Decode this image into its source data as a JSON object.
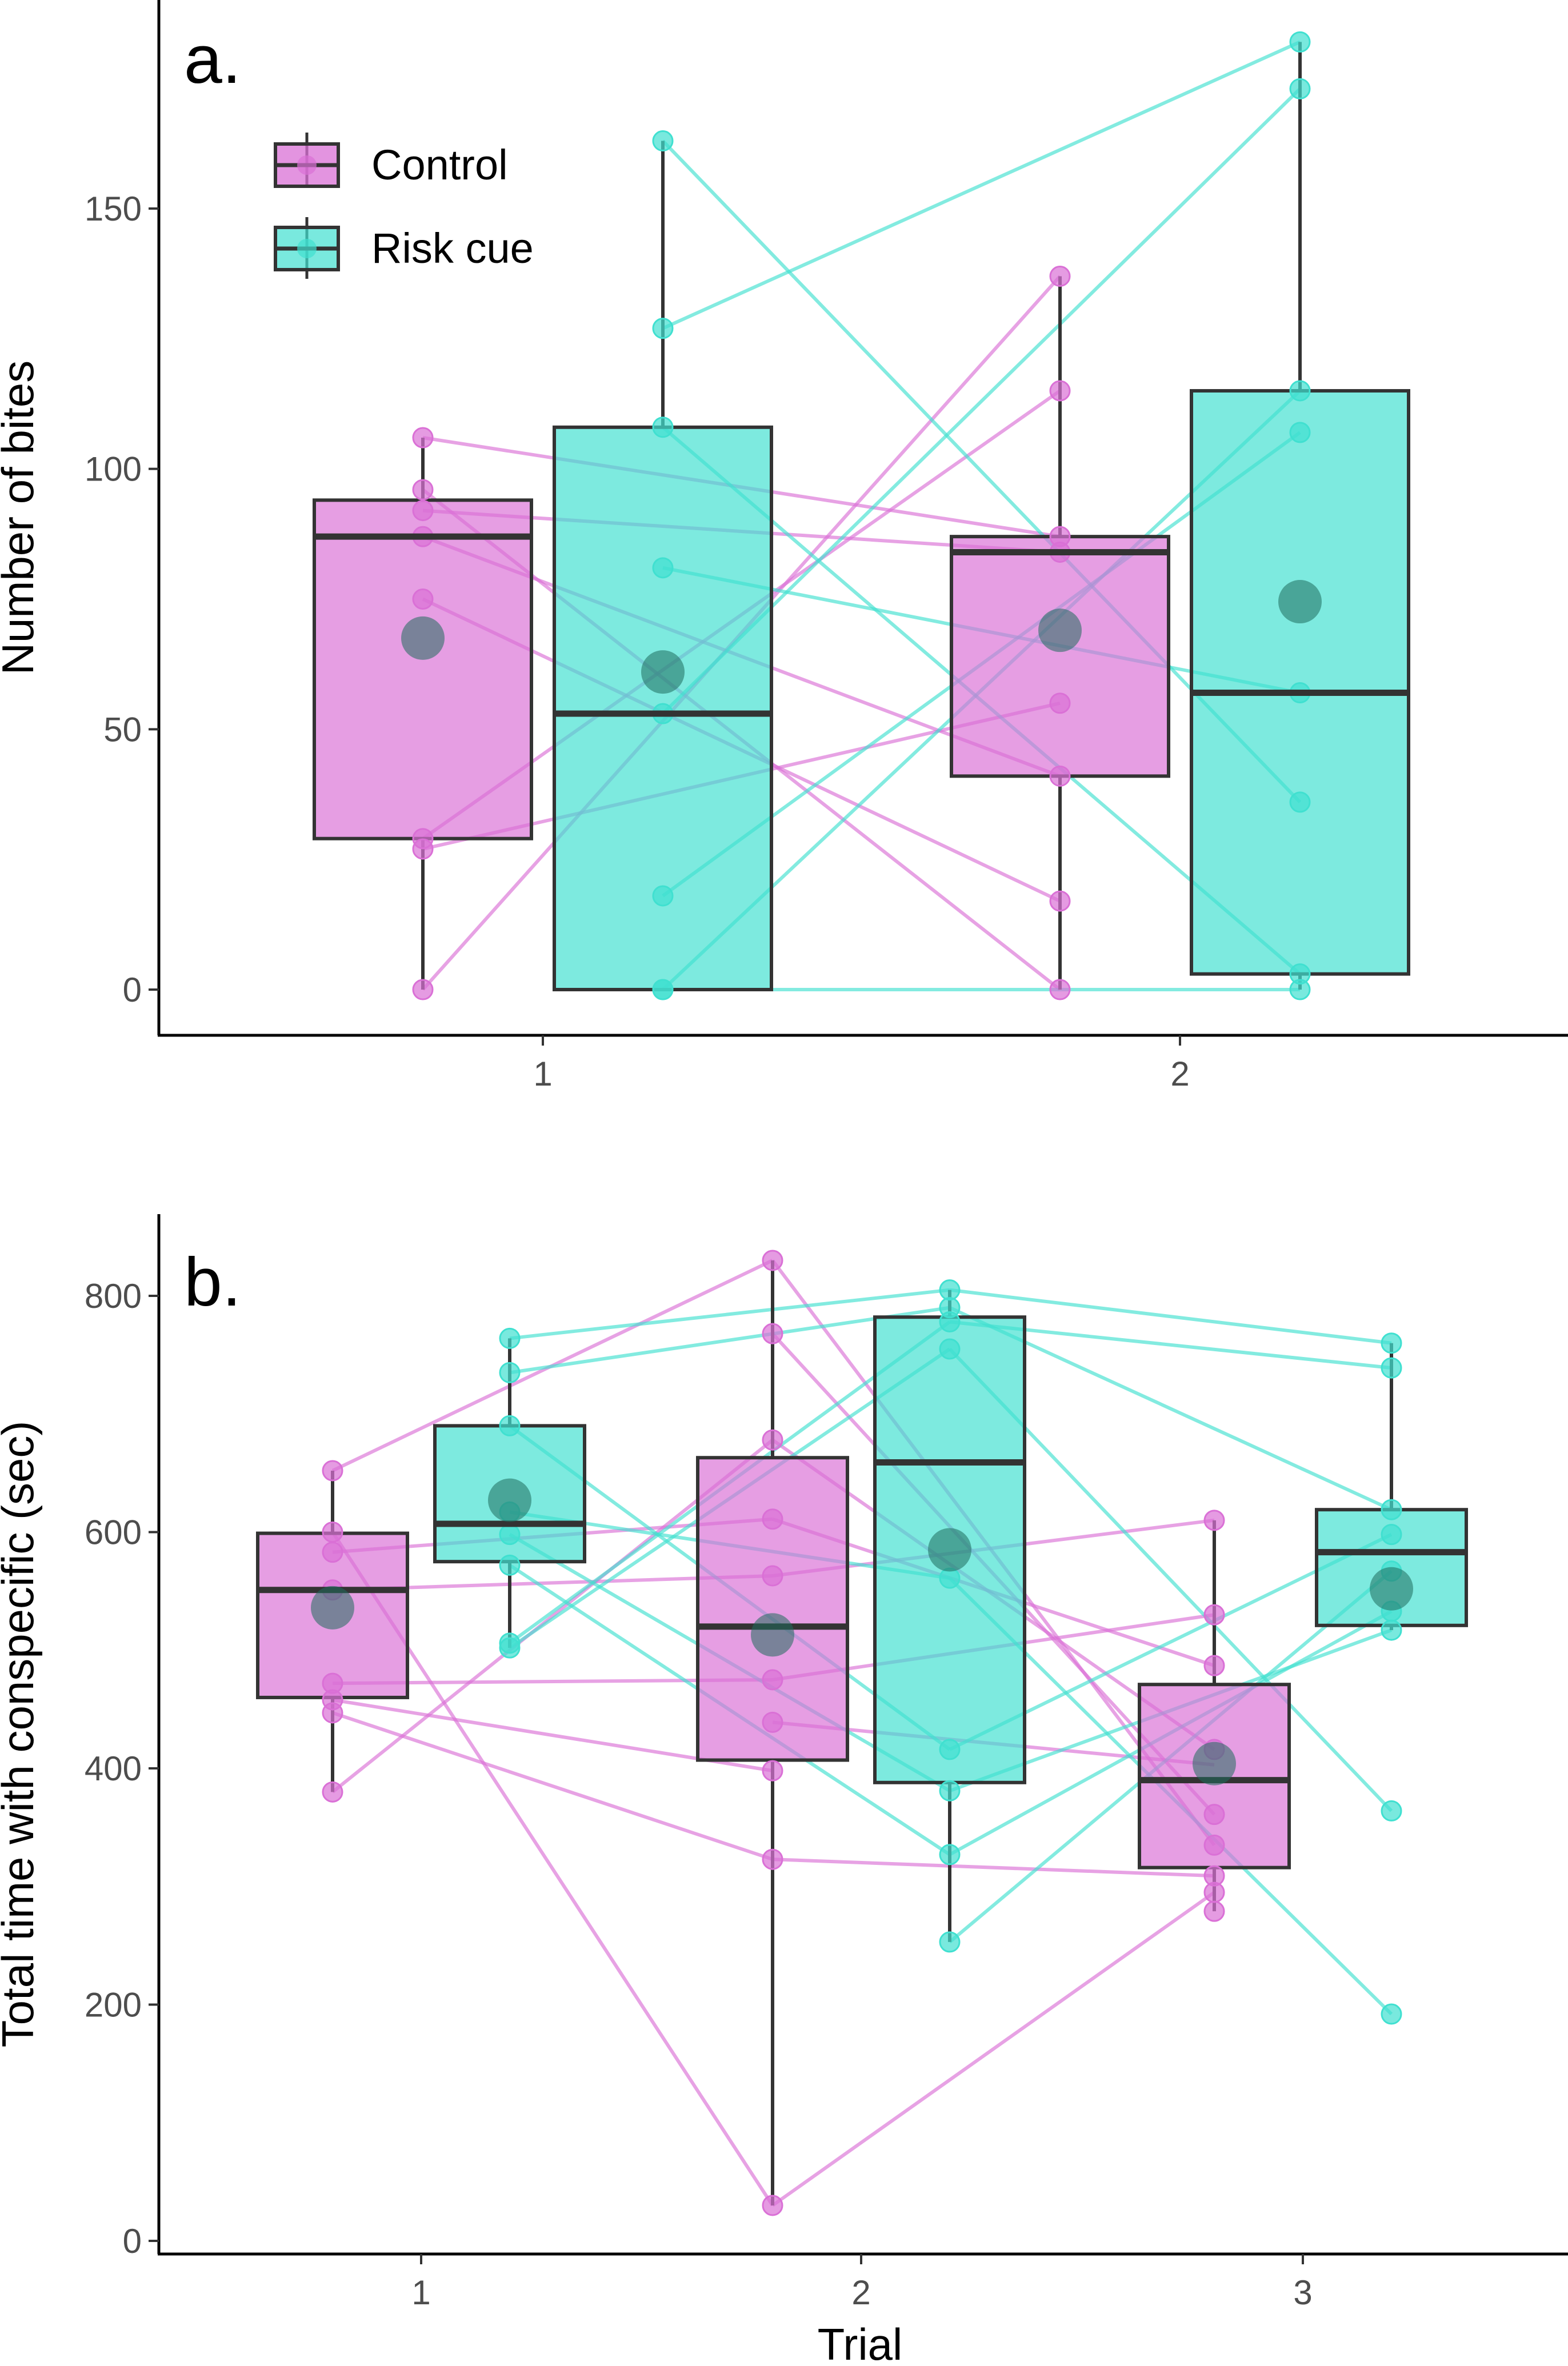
{
  "legend": {
    "items": [
      {
        "label": "Control",
        "color": "#DA70D6"
      },
      {
        "label": "Risk cue",
        "color": "#40E0D0"
      }
    ]
  },
  "chart_data": [
    {
      "type": "box",
      "panel_label": "a.",
      "xlabel": "",
      "ylabel": "Number of bites",
      "ylim": [
        -8,
        188
      ],
      "yticks": [
        0,
        50,
        100,
        150
      ],
      "categories": [
        "1",
        "2"
      ],
      "series": [
        {
          "name": "Control",
          "color": "#DA70D6",
          "boxes": [
            {
              "category": "1",
              "min": 0,
              "q1": 29,
              "median": 87,
              "q3": 94,
              "max": 106,
              "mean": 67.5,
              "points": [
                106,
                96,
                92,
                87,
                75,
                29,
                27,
                0
              ]
            },
            {
              "category": "2",
              "min": 0,
              "q1": 41,
              "median": 84,
              "q3": 87,
              "max": 137,
              "mean": 69,
              "points": [
                137,
                115,
                87,
                84,
                55,
                41,
                17,
                0
              ]
            }
          ]
        },
        {
          "name": "Risk cue",
          "color": "#40E0D0",
          "boxes": [
            {
              "category": "1",
              "min": 0,
              "q1": 0,
              "median": 53,
              "q3": 108,
              "max": 163,
              "mean": 61,
              "points": [
                163,
                127,
                108,
                81,
                53,
                18,
                0,
                0
              ]
            },
            {
              "category": "2",
              "min": 0,
              "q1": 3,
              "median": 57,
              "q3": 115,
              "max": 182,
              "mean": 74.5,
              "points": [
                182,
                173,
                115,
                107,
                57,
                36,
                3,
                0
              ]
            }
          ]
        }
      ],
      "lines": [
        {
          "series": "Control",
          "from": 106,
          "to": 87
        },
        {
          "series": "Control",
          "from": 96,
          "to": 0
        },
        {
          "series": "Control",
          "from": 92,
          "to": 84
        },
        {
          "series": "Control",
          "from": 87,
          "to": 41
        },
        {
          "series": "Control",
          "from": 75,
          "to": 17
        },
        {
          "series": "Control",
          "from": 29,
          "to": 115
        },
        {
          "series": "Control",
          "from": 27,
          "to": 55
        },
        {
          "series": "Control",
          "from": 0,
          "to": 137
        },
        {
          "series": "Risk cue",
          "from": 163,
          "to": 36
        },
        {
          "series": "Risk cue",
          "from": 127,
          "to": 182
        },
        {
          "series": "Risk cue",
          "from": 108,
          "to": 3
        },
        {
          "series": "Risk cue",
          "from": 81,
          "to": 57
        },
        {
          "series": "Risk cue",
          "from": 53,
          "to": 173
        },
        {
          "series": "Risk cue",
          "from": 18,
          "to": 107
        },
        {
          "series": "Risk cue",
          "from": 0,
          "to": 115
        },
        {
          "series": "Risk cue",
          "from": 0,
          "to": 0
        }
      ]
    },
    {
      "type": "box",
      "panel_label": "b.",
      "xlabel": "Trial",
      "ylabel": "Total time with conspecific (sec)",
      "ylim": [
        -5,
        870
      ],
      "yticks": [
        0,
        200,
        400,
        600,
        800
      ],
      "categories": [
        "1",
        "2",
        "3"
      ],
      "series": [
        {
          "name": "Control",
          "color": "#DA70D6",
          "boxes": [
            {
              "category": "1",
              "min": 380,
              "q1": 460,
              "median": 551,
              "q3": 599,
              "max": 652,
              "mean": 536,
              "points": [
                652,
                600,
                583,
                551,
                472,
                458,
                447,
                380
              ]
            },
            {
              "category": "2",
              "min": 30,
              "q1": 407,
              "median": 520,
              "q3": 663,
              "max": 830,
              "mean": 513,
              "points": [
                830,
                768,
                678,
                611,
                563,
                475,
                439,
                398,
                323,
                30
              ]
            },
            {
              "category": "3",
              "min": 279,
              "q1": 316,
              "median": 390,
              "q3": 471,
              "max": 610,
              "mean": 404,
              "points": [
                610,
                530,
                487,
                416,
                361,
                335,
                309,
                295,
                279
              ]
            }
          ]
        },
        {
          "name": "Risk cue",
          "color": "#40E0D0",
          "boxes": [
            {
              "category": "1",
              "min": 502,
              "q1": 575,
              "median": 607,
              "q3": 690,
              "max": 764,
              "mean": 627,
              "points": [
                764,
                735,
                690,
                617,
                598,
                572,
                506,
                502
              ]
            },
            {
              "category": "2",
              "min": 253,
              "q1": 388,
              "median": 659,
              "q3": 782,
              "max": 805,
              "mean": 585,
              "points": [
                805,
                790,
                778,
                755,
                561,
                416,
                381,
                327,
                253
              ]
            },
            {
              "category": "3",
              "min": 517,
              "q1": 521,
              "median": 583,
              "q3": 619,
              "max": 760,
              "mean": 552,
              "points": [
                760,
                739,
                619,
                598,
                567,
                533,
                517,
                364,
                192
              ]
            }
          ]
        }
      ],
      "lines": [
        {
          "series": "Control",
          "from": 652,
          "to": 830,
          "to_cat": "2"
        },
        {
          "series": "Control",
          "from": 600,
          "to": 30,
          "to_cat": "2"
        },
        {
          "series": "Control",
          "from": 583,
          "to": 611,
          "to_cat": "2"
        },
        {
          "series": "Control",
          "from": 551,
          "to": 563,
          "to_cat": "2"
        },
        {
          "series": "Control",
          "from": 472,
          "to": 475,
          "to_cat": "2"
        },
        {
          "series": "Control",
          "from": 458,
          "to": 398,
          "to_cat": "2"
        },
        {
          "series": "Control",
          "from": 447,
          "to": 323,
          "to_cat": "2"
        },
        {
          "series": "Control",
          "from": 380,
          "to": 678,
          "to_cat": "2"
        },
        {
          "series": "Control",
          "from": 830,
          "to": 335,
          "from_cat": "2",
          "to_cat": "3"
        },
        {
          "series": "Control",
          "from": 768,
          "to": 361,
          "from_cat": "2",
          "to_cat": "3"
        },
        {
          "series": "Control",
          "from": 678,
          "to": 416,
          "from_cat": "2",
          "to_cat": "3"
        },
        {
          "series": "Control",
          "from": 611,
          "to": 487,
          "from_cat": "2",
          "to_cat": "3"
        },
        {
          "series": "Control",
          "from": 563,
          "to": 610,
          "from_cat": "2",
          "to_cat": "3"
        },
        {
          "series": "Control",
          "from": 475,
          "to": 530,
          "from_cat": "2",
          "to_cat": "3"
        },
        {
          "series": "Control",
          "from": 439,
          "to": 403,
          "from_cat": "2",
          "to_cat": "3"
        },
        {
          "series": "Control",
          "from": 323,
          "to": 309,
          "from_cat": "2",
          "to_cat": "3"
        },
        {
          "series": "Control",
          "from": 30,
          "to": 295,
          "from_cat": "2",
          "to_cat": "3"
        },
        {
          "series": "Risk cue",
          "from": 764,
          "to": 805,
          "to_cat": "2"
        },
        {
          "series": "Risk cue",
          "from": 735,
          "to": 790,
          "to_cat": "2"
        },
        {
          "series": "Risk cue",
          "from": 690,
          "to": 416,
          "to_cat": "2"
        },
        {
          "series": "Risk cue",
          "from": 617,
          "to": 561,
          "to_cat": "2"
        },
        {
          "series": "Risk cue",
          "from": 598,
          "to": 381,
          "to_cat": "2"
        },
        {
          "series": "Risk cue",
          "from": 572,
          "to": 327,
          "to_cat": "2"
        },
        {
          "series": "Risk cue",
          "from": 506,
          "to": 778,
          "to_cat": "2"
        },
        {
          "series": "Risk cue",
          "from": 502,
          "to": 755,
          "to_cat": "2"
        },
        {
          "series": "Risk cue",
          "from": 805,
          "to": 760,
          "from_cat": "2",
          "to_cat": "3"
        },
        {
          "series": "Risk cue",
          "from": 790,
          "to": 619,
          "from_cat": "2",
          "to_cat": "3"
        },
        {
          "series": "Risk cue",
          "from": 778,
          "to": 739,
          "from_cat": "2",
          "to_cat": "3"
        },
        {
          "series": "Risk cue",
          "from": 755,
          "to": 364,
          "from_cat": "2",
          "to_cat": "3"
        },
        {
          "series": "Risk cue",
          "from": 561,
          "to": 192,
          "from_cat": "2",
          "to_cat": "3"
        },
        {
          "series": "Risk cue",
          "from": 416,
          "to": 598,
          "from_cat": "2",
          "to_cat": "3"
        },
        {
          "series": "Risk cue",
          "from": 381,
          "to": 517,
          "from_cat": "2",
          "to_cat": "3"
        },
        {
          "series": "Risk cue",
          "from": 327,
          "to": 533,
          "from_cat": "2",
          "to_cat": "3"
        },
        {
          "series": "Risk cue",
          "from": 253,
          "to": 567,
          "from_cat": "2",
          "to_cat": "3"
        }
      ]
    }
  ]
}
